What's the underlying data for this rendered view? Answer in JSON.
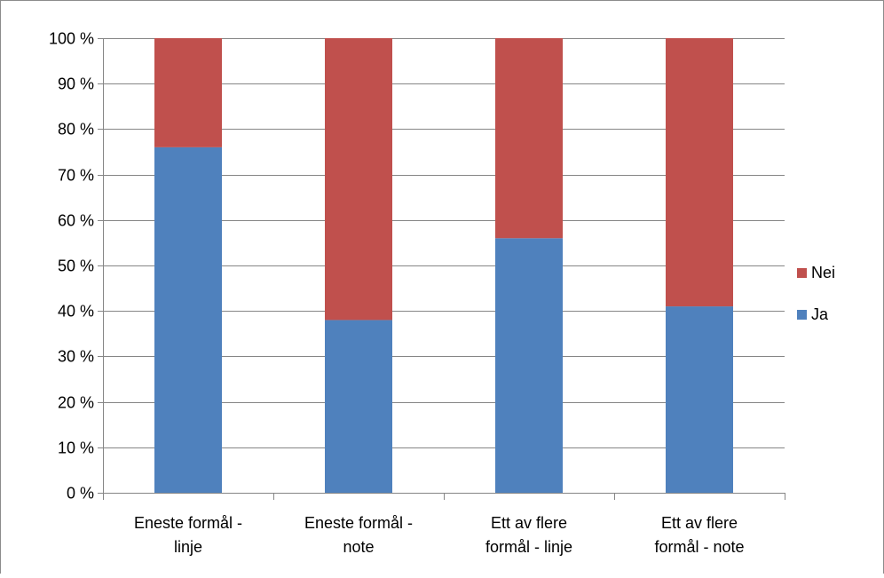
{
  "chart_data": {
    "type": "bar",
    "stacked": true,
    "categories": [
      [
        "Eneste formål -",
        "linje"
      ],
      [
        "Eneste formål -",
        "note"
      ],
      [
        "Ett av flere",
        "formål - linje"
      ],
      [
        "Ett av flere",
        "formål - note"
      ]
    ],
    "series": [
      {
        "name": "Ja",
        "values": [
          76,
          38,
          56,
          41
        ],
        "color": "#4f81bd"
      },
      {
        "name": "Nei",
        "values": [
          24,
          62,
          44,
          59
        ],
        "color": "#c0504d"
      }
    ],
    "ylim": [
      0,
      100
    ],
    "y_ticks": [
      0,
      10,
      20,
      30,
      40,
      50,
      60,
      70,
      80,
      90,
      100
    ],
    "y_tick_format": "{v} %",
    "grid": true,
    "legend": {
      "placement": "right",
      "order": [
        "Nei",
        "Ja"
      ]
    },
    "title": "",
    "xlabel": "",
    "ylabel": ""
  }
}
